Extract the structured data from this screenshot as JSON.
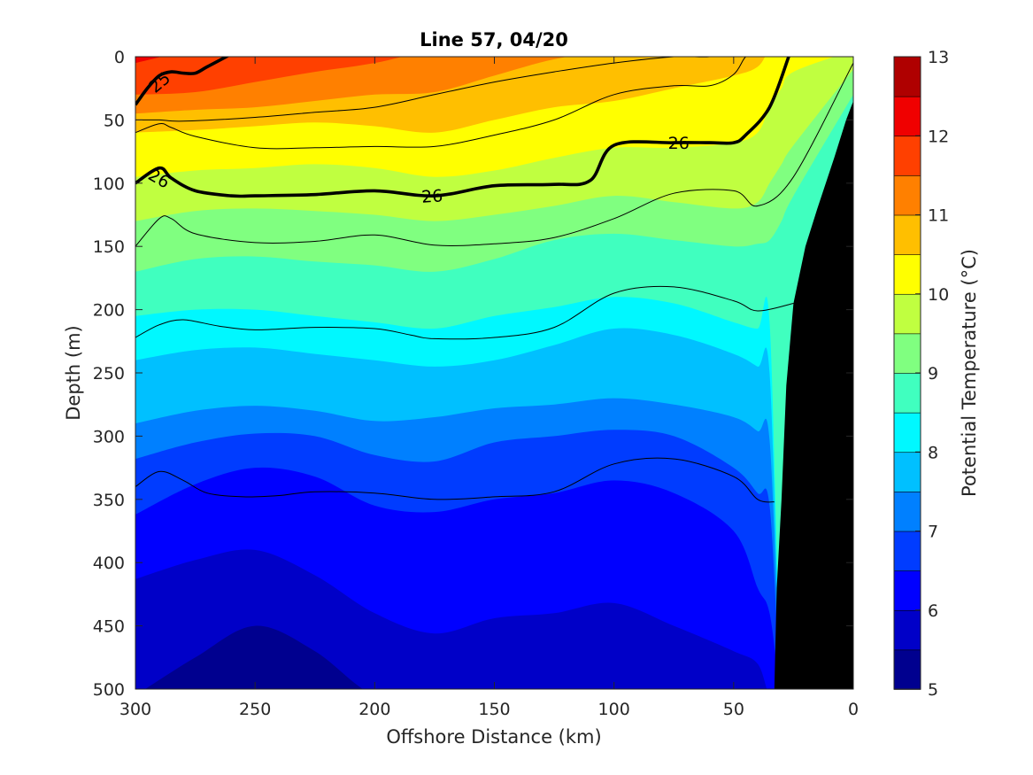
{
  "chart_data": {
    "type": "filled-contour",
    "title": "Line 57, 04/20",
    "xlabel": "Offshore Distance (km)",
    "ylabel": "Depth (m)",
    "colorbar_label": "Potential Temperature (°C)",
    "xlim": [
      300,
      0
    ],
    "ylim": [
      500,
      0
    ],
    "x_ticks": [
      "300",
      "250",
      "200",
      "150",
      "100",
      "50",
      "0"
    ],
    "x_tick_values": [
      300,
      250,
      200,
      150,
      100,
      50,
      0
    ],
    "y_ticks": [
      "0",
      "50",
      "100",
      "150",
      "200",
      "250",
      "300",
      "350",
      "400",
      "450",
      "500"
    ],
    "y_tick_values": [
      0,
      50,
      100,
      150,
      200,
      250,
      300,
      350,
      400,
      450,
      500
    ],
    "colorbar_ticks": [
      "5",
      "6",
      "7",
      "8",
      "9",
      "10",
      "11",
      "12",
      "13"
    ],
    "colorbar_range": [
      5,
      13
    ],
    "level_step": 0.5,
    "level_colors": [
      "#00008f",
      "#0000c8",
      "#0000ff",
      "#003cff",
      "#0080ff",
      "#00c0ff",
      "#00f8ff",
      "#40ffbf",
      "#80ff80",
      "#c0ff40",
      "#ffff00",
      "#ffbf00",
      "#ff8000",
      "#ff4000",
      "#f00000",
      "#af0000"
    ],
    "isotherm_depth_profiles": {
      "x": [
        300,
        275,
        250,
        225,
        200,
        175,
        150,
        125,
        100,
        75,
        50,
        40,
        35,
        30,
        25,
        0
      ],
      "bands": [
        {
          "min_temp": 5.5,
          "depth": [
            505,
            475,
            450,
            470,
            505,
            505,
            505,
            505,
            505,
            505,
            505,
            505,
            505,
            505,
            505,
            505
          ]
        },
        {
          "min_temp": 6.0,
          "depth": [
            413,
            398,
            390,
            410,
            440,
            456,
            444,
            440,
            432,
            450,
            470,
            480,
            505,
            505,
            505,
            505
          ]
        },
        {
          "min_temp": 6.5,
          "depth": [
            362,
            338,
            325,
            332,
            355,
            360,
            350,
            345,
            335,
            345,
            375,
            420,
            440,
            505,
            505,
            505
          ]
        },
        {
          "min_temp": 7.0,
          "depth": [
            318,
            305,
            298,
            300,
            315,
            320,
            305,
            300,
            295,
            300,
            325,
            345,
            355,
            505,
            505,
            505
          ]
        },
        {
          "min_temp": 7.5,
          "depth": [
            290,
            280,
            276,
            280,
            288,
            285,
            278,
            275,
            270,
            275,
            285,
            296,
            303,
            505,
            505,
            505
          ]
        },
        {
          "min_temp": 8.0,
          "depth": [
            240,
            232,
            230,
            235,
            240,
            245,
            240,
            228,
            215,
            220,
            235,
            245,
            250,
            505,
            505,
            505
          ]
        },
        {
          "min_temp": 8.5,
          "depth": [
            205,
            200,
            200,
            205,
            210,
            215,
            205,
            198,
            190,
            195,
            210,
            215,
            210,
            505,
            505,
            505
          ]
        },
        {
          "min_temp": 9.0,
          "depth": [
            170,
            160,
            158,
            162,
            165,
            170,
            160,
            145,
            140,
            145,
            150,
            148,
            145,
            130,
            110,
            30
          ]
        },
        {
          "min_temp": 9.5,
          "depth": [
            130,
            122,
            120,
            122,
            125,
            130,
            125,
            118,
            110,
            115,
            120,
            115,
            100,
            85,
            70,
            10
          ]
        },
        {
          "min_temp": 10.0,
          "depth": [
            95,
            90,
            88,
            85,
            88,
            95,
            90,
            80,
            72,
            72,
            68,
            60,
            40,
            25,
            12,
            -5
          ]
        },
        {
          "min_temp": 10.5,
          "depth": [
            60,
            58,
            55,
            52,
            55,
            60,
            50,
            40,
            35,
            25,
            15,
            8,
            -5,
            -5,
            -5,
            -5
          ]
        },
        {
          "min_temp": 11.0,
          "depth": [
            45,
            42,
            40,
            35,
            30,
            28,
            15,
            2,
            -5,
            -5,
            -5,
            -5,
            -5,
            -5,
            -5,
            -5
          ]
        },
        {
          "min_temp": 11.5,
          "depth": [
            30,
            28,
            20,
            12,
            5,
            -5,
            -5,
            -5,
            -5,
            -5,
            -5,
            -5,
            -5,
            -5,
            -5,
            -5
          ]
        },
        {
          "min_temp": 12.0,
          "depth": [
            5,
            -5,
            -5,
            -5,
            -5,
            -5,
            -5,
            -5,
            -5,
            -5,
            -5,
            -5,
            -5,
            -5,
            -5,
            -5
          ]
        }
      ]
    },
    "density_contours": [
      {
        "label": "",
        "bold": false,
        "x": [
          300,
          290,
          280,
          270,
          255,
          240,
          225,
          200,
          175,
          150,
          125,
          100,
          75,
          50,
          40,
          33
        ],
        "depth": [
          340,
          328,
          335,
          345,
          348,
          347,
          344,
          345,
          350,
          348,
          344,
          322,
          318,
          332,
          350,
          352
        ]
      },
      {
        "label": "",
        "bold": false,
        "x": [
          300,
          290,
          280,
          265,
          250,
          225,
          200,
          185,
          175,
          150,
          125,
          100,
          75,
          50,
          40,
          25
        ],
        "depth": [
          222,
          212,
          208,
          213,
          216,
          214,
          215,
          220,
          223,
          222,
          214,
          187,
          182,
          193,
          201,
          195
        ]
      },
      {
        "label": "",
        "bold": false,
        "x": [
          300,
          290,
          285,
          275,
          250,
          225,
          200,
          175,
          150,
          125,
          100,
          75,
          50,
          40,
          25,
          0
        ],
        "depth": [
          150,
          128,
          128,
          140,
          147,
          146,
          141,
          149,
          148,
          143,
          128,
          108,
          106,
          118,
          95,
          5
        ]
      },
      {
        "label": "26",
        "bold": true,
        "x": [
          300,
          290,
          285,
          275,
          260,
          250,
          225,
          200,
          175,
          150,
          125,
          110,
          100,
          75,
          60,
          50,
          45,
          35,
          27
        ],
        "depth": [
          100,
          88,
          96,
          106,
          110,
          110,
          109,
          106,
          110,
          102,
          101,
          98,
          70,
          68,
          68,
          68,
          62,
          40,
          0
        ]
      },
      {
        "label": "",
        "bold": false,
        "x": [
          300,
          290,
          285,
          275,
          250,
          225,
          200,
          175,
          150,
          125,
          100,
          75,
          60,
          50,
          45,
          40,
          35
        ],
        "depth": [
          60,
          53,
          56,
          63,
          72,
          72,
          71,
          71,
          62,
          50,
          30,
          23,
          23,
          14,
          0,
          -5,
          -5
        ]
      },
      {
        "label": "",
        "bold": false,
        "x": [
          300,
          290,
          280,
          250,
          225,
          200,
          175,
          150,
          125,
          100,
          75,
          60,
          50,
          40,
          35
        ],
        "depth": [
          50,
          50,
          51,
          48,
          44,
          40,
          30,
          20,
          12,
          5,
          0,
          0,
          -5,
          -5,
          -5
        ]
      },
      {
        "label": "25",
        "bold": true,
        "x": [
          300,
          295,
          290,
          285,
          280,
          275,
          270,
          260
        ],
        "depth": [
          38,
          25,
          15,
          12,
          13,
          13,
          8,
          -2
        ]
      }
    ],
    "shelf_x": [
      33,
      32,
      30,
      28,
      25,
      20,
      15,
      8,
      3,
      0
    ],
    "shelf_depth": [
      500,
      420,
      350,
      260,
      195,
      150,
      120,
      80,
      50,
      35
    ],
    "grid": false,
    "legend": "colorbar-right"
  }
}
